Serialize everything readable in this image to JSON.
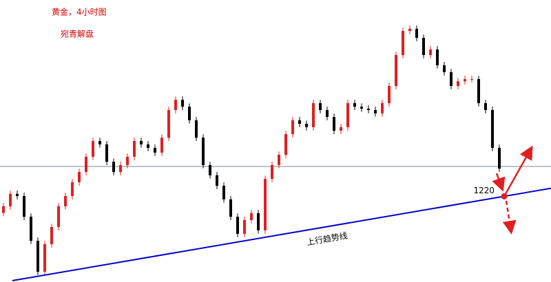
{
  "chart_data": {
    "type": "candlestick",
    "title": "黄金，4小时图",
    "subtitle": "宛青解盘",
    "xlim": [
      -0.5,
      79.5
    ],
    "ylim": [
      1189,
      1291
    ],
    "up_color": "#e02020",
    "down_color": "#000000",
    "open": [
      1214,
      1216.4,
      1220.9,
      1220.1,
      1212.6,
      1203.9,
      1192.7,
      1202.7,
      1208.9,
      1216.4,
      1220.1,
      1225.1,
      1228.8,
      1234.3,
      1240,
      1238.8,
      1232.5,
      1228.8,
      1231.3,
      1234.3,
      1240,
      1238.8,
      1237.5,
      1235.8,
      1241.2,
      1251.2,
      1254.9,
      1252.4,
      1247.5,
      1241.2,
      1231.3,
      1227.6,
      1223.8,
      1218.9,
      1212.6,
      1206.4,
      1211.4,
      1213.9,
      1207.7,
      1226.3,
      1231.3,
      1235,
      1242.5,
      1247.5,
      1246.2,
      1245,
      1253.7,
      1251.2,
      1248.7,
      1243.7,
      1245,
      1253.7,
      1252.4,
      1251.7,
      1251.2,
      1250,
      1253.7,
      1259.9,
      1271.1,
      1279.8,
      1280.6,
      1277.3,
      1271.1,
      1273.1,
      1267.4,
      1264.9,
      1259.9,
      1261.6,
      1262.4,
      1262.4,
      1253.7,
      1251.2,
      1237.5
    ],
    "high": [
      1217.6,
      1222.1,
      1222.1,
      1221.3,
      1213.8,
      1205.1,
      1203.9,
      1210.1,
      1217.6,
      1221.3,
      1226.3,
      1230,
      1235.5,
      1241.2,
      1241.2,
      1240,
      1233.7,
      1232.5,
      1235.5,
      1241.2,
      1241.2,
      1240,
      1238.7,
      1242.4,
      1252.4,
      1256.1,
      1256.1,
      1253.6,
      1248.7,
      1242.4,
      1232.5,
      1228.8,
      1225,
      1220.1,
      1213.8,
      1212.6,
      1215.1,
      1215.1,
      1227.5,
      1232.5,
      1236.2,
      1243.7,
      1248.7,
      1248.7,
      1247.4,
      1254.9,
      1254.9,
      1252.4,
      1249.9,
      1246.2,
      1254.9,
      1254.9,
      1253.6,
      1252.9,
      1252.4,
      1254.9,
      1261.1,
      1272.3,
      1281,
      1281.8,
      1281.8,
      1278.5,
      1274.3,
      1274.3,
      1268.6,
      1266.1,
      1262.8,
      1263.6,
      1263.6,
      1263.6,
      1254.9,
      1252.4,
      1238.7
    ],
    "low": [
      1212.8,
      1215.2,
      1218.9,
      1211.4,
      1202.7,
      1191.5,
      1191.5,
      1201.5,
      1207.7,
      1215.2,
      1218.9,
      1223.9,
      1227.6,
      1233.1,
      1237.6,
      1231.3,
      1227.6,
      1227.6,
      1230.1,
      1233.1,
      1237.6,
      1236.3,
      1234.6,
      1234.6,
      1240,
      1250,
      1251.2,
      1246.3,
      1240,
      1230.1,
      1226.4,
      1222.6,
      1217.7,
      1211.4,
      1205.2,
      1205.2,
      1210.2,
      1206.5,
      1206.5,
      1225.1,
      1230.1,
      1233.8,
      1241.3,
      1245,
      1243.8,
      1243.8,
      1250,
      1247.5,
      1242.5,
      1242.5,
      1243.8,
      1251.2,
      1250.5,
      1250,
      1248.8,
      1248.8,
      1252.5,
      1258.7,
      1269.9,
      1278.6,
      1276.1,
      1269.9,
      1269.9,
      1266.2,
      1263.7,
      1258.7,
      1258.7,
      1260.4,
      1261.2,
      1252.5,
      1250,
      1236.3,
      1228.8
    ],
    "close": [
      1216.4,
      1220.9,
      1220.1,
      1212.6,
      1203.9,
      1192.7,
      1202.7,
      1208.9,
      1216.4,
      1220.1,
      1225.1,
      1228.8,
      1234.3,
      1240,
      1238.8,
      1232.5,
      1228.8,
      1231.3,
      1234.3,
      1240,
      1238.8,
      1237.5,
      1235.8,
      1241.2,
      1251.2,
      1254.9,
      1252.4,
      1247.5,
      1241.2,
      1231.3,
      1227.6,
      1223.8,
      1218.9,
      1212.6,
      1206.4,
      1211.4,
      1213.9,
      1207.7,
      1226.3,
      1231.3,
      1235,
      1242.5,
      1247.5,
      1246.2,
      1245,
      1253.7,
      1251.2,
      1248.7,
      1243.7,
      1245,
      1253.7,
      1252.4,
      1251.7,
      1251.2,
      1250,
      1253.7,
      1259.9,
      1271.1,
      1279.8,
      1280.6,
      1277.3,
      1271.1,
      1273.1,
      1267.4,
      1264.9,
      1259.9,
      1261.6,
      1262.4,
      1262.4,
      1253.7,
      1251.2,
      1237.5,
      1230
    ],
    "hline": 1230.8,
    "trendline": {
      "label": "上行趋势线",
      "color": "#0000cc",
      "x": [
        1.3,
        79.5
      ],
      "y": [
        1189.5,
        1222.9
      ]
    },
    "level": 1220,
    "level_x": 72.7,
    "level_color": "#e02020"
  }
}
